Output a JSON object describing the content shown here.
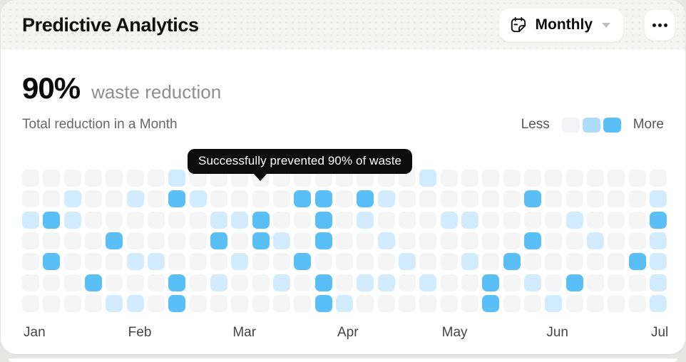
{
  "header": {
    "title": "Predictive Analytics",
    "period_selector": {
      "label": "Monthly"
    }
  },
  "metric": {
    "value": "90%",
    "label": "waste reduction",
    "subtitle": "Total reduction in a Month"
  },
  "legend": {
    "less_label": "Less",
    "more_label": "More",
    "colors": [
      "#f4f4f6",
      "#addcfa",
      "#5bbff7"
    ]
  },
  "tooltip": {
    "text": "Successfully prevented 90% of waste"
  },
  "chart_data": {
    "type": "heatmap",
    "title": "Waste reduction heatmap, daily cells by week",
    "rows": 7,
    "columns": 31,
    "months": [
      "Jan",
      "Feb",
      "Mar",
      "Apr",
      "May",
      "Jun",
      "Jul"
    ],
    "month_col_index": [
      0,
      5,
      10,
      15,
      20,
      25,
      30
    ],
    "legend_scale": [
      "Less",
      "More"
    ],
    "level_colors": [
      "#f5f5f6",
      "#d3ecfd",
      "#5bbff7"
    ],
    "levels": [
      [
        0,
        0,
        0,
        0,
        0,
        0,
        0,
        1,
        0,
        0,
        0,
        0,
        0,
        0,
        0,
        0,
        0,
        0,
        0,
        1,
        0,
        0,
        0,
        0,
        0,
        0,
        0,
        0,
        0,
        0,
        0
      ],
      [
        0,
        0,
        1,
        0,
        0,
        1,
        0,
        2,
        1,
        0,
        0,
        0,
        0,
        2,
        2,
        0,
        2,
        1,
        0,
        0,
        0,
        0,
        0,
        0,
        2,
        0,
        0,
        0,
        0,
        0,
        1
      ],
      [
        1,
        2,
        1,
        0,
        0,
        0,
        0,
        0,
        0,
        1,
        1,
        2,
        0,
        0,
        2,
        0,
        1,
        0,
        0,
        0,
        1,
        1,
        0,
        0,
        0,
        0,
        1,
        0,
        0,
        0,
        2
      ],
      [
        0,
        0,
        0,
        0,
        2,
        0,
        0,
        0,
        0,
        2,
        0,
        2,
        1,
        0,
        2,
        0,
        0,
        1,
        0,
        0,
        0,
        0,
        0,
        0,
        2,
        0,
        0,
        1,
        0,
        0,
        1
      ],
      [
        0,
        2,
        0,
        0,
        0,
        1,
        1,
        0,
        0,
        0,
        1,
        0,
        0,
        2,
        0,
        0,
        0,
        0,
        1,
        0,
        0,
        1,
        0,
        2,
        0,
        0,
        0,
        0,
        0,
        2,
        1
      ],
      [
        0,
        0,
        0,
        2,
        0,
        0,
        0,
        2,
        0,
        1,
        0,
        0,
        1,
        0,
        2,
        0,
        1,
        1,
        0,
        1,
        0,
        0,
        2,
        0,
        1,
        0,
        2,
        0,
        0,
        0,
        1
      ],
      [
        0,
        0,
        0,
        0,
        1,
        1,
        0,
        2,
        0,
        0,
        0,
        0,
        0,
        0,
        2,
        1,
        0,
        0,
        0,
        0,
        0,
        0,
        2,
        0,
        0,
        1,
        0,
        0,
        0,
        0,
        1
      ]
    ]
  },
  "colors": {
    "accent": "#5bbff7",
    "header_bg": "#f5f6f3",
    "tooltip_bg": "#0c0c0c",
    "card_bg": "#ffffff"
  }
}
